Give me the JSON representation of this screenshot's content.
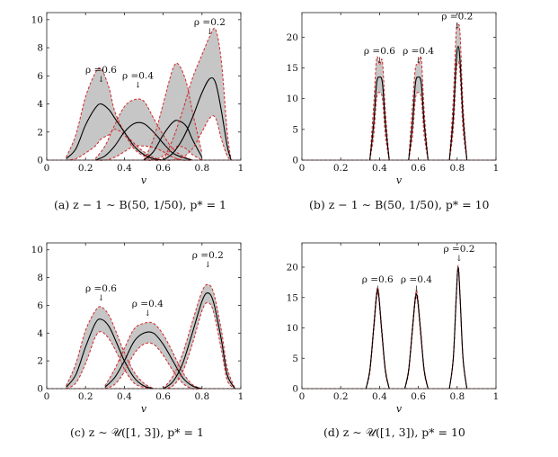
{
  "figure": {
    "panels": [
      {
        "caption": "(a) z − 1 ∼ B(50, 1/50), p* = 1"
      },
      {
        "caption": "(b) z − 1 ∼ B(50, 1/50), p* = 10"
      },
      {
        "caption": "(c) z ∼ 𝒰([1, 3]), p* = 1"
      },
      {
        "caption": "(d) z ∼ 𝒰([1, 3]), p* = 10"
      }
    ]
  },
  "colors": {
    "band_fill": "#b3b3b3",
    "band_edge": "#d62728",
    "mean_line": "#000000"
  },
  "chart_data": [
    {
      "type": "area",
      "xlabel": "v",
      "xlim": [
        0,
        1
      ],
      "ylim": [
        0,
        10.5
      ],
      "xticks": [
        "0",
        "0.2",
        "0.4",
        "0.6",
        "0.8",
        "1"
      ],
      "yticks": [
        "0",
        "2",
        "4",
        "6",
        "8",
        "10"
      ],
      "xtick_values": [
        0,
        0.2,
        0.4,
        0.6,
        0.8,
        1
      ],
      "ytick_values": [
        0,
        2,
        4,
        6,
        8,
        10
      ],
      "annotations": [
        {
          "text": "ρ =0.6",
          "x": 0.28,
          "y": 6.2
        },
        {
          "text": "ρ =0.4",
          "x": 0.47,
          "y": 5.8
        },
        {
          "text": "ρ =0.2",
          "x": 0.84,
          "y": 9.6
        }
      ],
      "series": [
        {
          "name": "ρ =0.6",
          "x": [
            0.1,
            0.15,
            0.2,
            0.25,
            0.28,
            0.32,
            0.35,
            0.4,
            0.45,
            0.5,
            0.55,
            0.6
          ],
          "mean": [
            0.1,
            0.8,
            2.5,
            3.7,
            4.0,
            3.6,
            3.0,
            2.0,
            1.0,
            0.4,
            0.1,
            0
          ],
          "upper": [
            0.2,
            1.8,
            4.5,
            6.2,
            6.5,
            5.2,
            3.5,
            2.0,
            1.2,
            0.6,
            0.2,
            0
          ],
          "lower": [
            0,
            0.1,
            0.5,
            1.0,
            1.5,
            1.8,
            2.2,
            1.8,
            0.8,
            0.3,
            0,
            0
          ]
        },
        {
          "name": "ρ =0.4",
          "x": [
            0.25,
            0.3,
            0.35,
            0.4,
            0.45,
            0.5,
            0.55,
            0.6,
            0.65,
            0.7,
            0.75
          ],
          "mean": [
            0,
            0.3,
            1.0,
            2.0,
            2.6,
            2.6,
            2.0,
            1.2,
            0.5,
            0.2,
            0
          ],
          "upper": [
            0.1,
            1.0,
            2.5,
            3.8,
            4.3,
            4.2,
            3.0,
            1.8,
            0.8,
            0.3,
            0
          ],
          "lower": [
            0,
            0,
            0.2,
            0.6,
            1.0,
            1.0,
            0.9,
            0.6,
            0.2,
            0,
            0
          ]
        },
        {
          "name": "",
          "x": [
            0.5,
            0.55,
            0.6,
            0.65,
            0.68,
            0.72,
            0.75,
            0.8
          ],
          "mean": [
            0,
            0.6,
            1.8,
            2.7,
            2.8,
            2.4,
            1.5,
            0.2
          ],
          "upper": [
            0,
            1.5,
            4.0,
            6.5,
            6.8,
            5.5,
            3.5,
            0.5
          ],
          "lower": [
            0,
            0,
            0.3,
            0.8,
            1.0,
            0.8,
            0.4,
            0
          ]
        },
        {
          "name": "ρ =0.2",
          "x": [
            0.6,
            0.65,
            0.7,
            0.75,
            0.8,
            0.84,
            0.87,
            0.9,
            0.93,
            0.95
          ],
          "mean": [
            0,
            0.5,
            1.5,
            3.0,
            4.8,
            5.8,
            5.5,
            3.5,
            1.0,
            0
          ],
          "upper": [
            0,
            1.5,
            3.5,
            5.8,
            7.5,
            8.8,
            9.3,
            7.0,
            2.0,
            0
          ],
          "lower": [
            0,
            0,
            0.2,
            0.8,
            2.0,
            3.0,
            3.0,
            1.5,
            0.3,
            0
          ]
        }
      ]
    },
    {
      "type": "area",
      "xlabel": "v",
      "xlim": [
        0,
        1
      ],
      "ylim": [
        0,
        24
      ],
      "xticks": [
        "0",
        "0.2",
        "0.4",
        "0.6",
        "0.8",
        "1"
      ],
      "yticks": [
        "0",
        "5",
        "10",
        "15",
        "20"
      ],
      "xtick_values": [
        0,
        0.2,
        0.4,
        0.6,
        0.8,
        1
      ],
      "ytick_values": [
        0,
        5,
        10,
        15,
        20
      ],
      "annotations": [
        {
          "text": "ρ =0.6",
          "x": 0.4,
          "y": 17.3
        },
        {
          "text": "ρ =0.4",
          "x": 0.6,
          "y": 17.3
        },
        {
          "text": "ρ =0.2",
          "x": 0.8,
          "y": 22.9
        }
      ],
      "series": [
        {
          "name": "ρ =0.6",
          "x": [
            0.35,
            0.37,
            0.385,
            0.4,
            0.415,
            0.43,
            0.45
          ],
          "mean": [
            0,
            6,
            12.5,
            13.5,
            12.5,
            6,
            0
          ],
          "upper": [
            0,
            9,
            16.5,
            15.5,
            16.0,
            8,
            0
          ],
          "lower": [
            0,
            4,
            10,
            11,
            10,
            4,
            0
          ]
        },
        {
          "name": "ρ =0.4",
          "x": [
            0.55,
            0.57,
            0.585,
            0.6,
            0.615,
            0.63,
            0.65
          ],
          "mean": [
            0,
            6,
            12.5,
            13.5,
            12.5,
            6,
            0
          ],
          "upper": [
            0,
            9,
            15.0,
            15.5,
            16.5,
            8,
            0
          ],
          "lower": [
            0,
            4,
            10,
            11,
            10,
            4,
            0
          ]
        },
        {
          "name": "ρ =0.2",
          "x": [
            0.76,
            0.78,
            0.795,
            0.805,
            0.815,
            0.83,
            0.85
          ],
          "mean": [
            0,
            7,
            16,
            18.5,
            16,
            7,
            0
          ],
          "upper": [
            0,
            10,
            21,
            22,
            20.5,
            9,
            0
          ],
          "lower": [
            0,
            5,
            14,
            16,
            14,
            5,
            0
          ]
        }
      ]
    },
    {
      "type": "area",
      "xlabel": "v",
      "xlim": [
        0,
        1
      ],
      "ylim": [
        0,
        10.5
      ],
      "xticks": [
        "0",
        "0.2",
        "0.4",
        "0.6",
        "0.8",
        "1"
      ],
      "yticks": [
        "0",
        "2",
        "4",
        "6",
        "8",
        "10"
      ],
      "xtick_values": [
        0,
        0.2,
        0.4,
        0.6,
        0.8,
        1
      ],
      "ytick_values": [
        0,
        2,
        4,
        6,
        8,
        10
      ],
      "annotations": [
        {
          "text": "ρ =0.6",
          "x": 0.28,
          "y": 7.0
        },
        {
          "text": "ρ =0.4",
          "x": 0.52,
          "y": 5.9
        },
        {
          "text": "ρ =0.2",
          "x": 0.83,
          "y": 9.4
        }
      ],
      "series": [
        {
          "name": "ρ =0.6",
          "x": [
            0.1,
            0.15,
            0.2,
            0.25,
            0.28,
            0.32,
            0.36,
            0.4,
            0.45,
            0.5,
            0.55
          ],
          "mean": [
            0.1,
            1.0,
            3.0,
            4.7,
            5.0,
            4.5,
            3.3,
            2.0,
            0.8,
            0.2,
            0
          ],
          "upper": [
            0.2,
            1.8,
            4.2,
            5.6,
            5.9,
            5.3,
            4.0,
            2.6,
            1.2,
            0.4,
            0
          ],
          "lower": [
            0,
            0.4,
            1.8,
            3.7,
            4.1,
            3.6,
            2.6,
            1.4,
            0.4,
            0.1,
            0
          ]
        },
        {
          "name": "ρ =0.4",
          "x": [
            0.3,
            0.35,
            0.4,
            0.45,
            0.5,
            0.55,
            0.6,
            0.65,
            0.7,
            0.75,
            0.8
          ],
          "mean": [
            0.1,
            0.8,
            2.0,
            3.4,
            4.0,
            4.0,
            3.2,
            2.0,
            0.8,
            0.2,
            0
          ],
          "upper": [
            0.2,
            1.4,
            2.9,
            4.3,
            4.7,
            4.7,
            3.9,
            2.6,
            1.2,
            0.3,
            0
          ],
          "lower": [
            0,
            0.3,
            1.2,
            2.5,
            3.2,
            3.2,
            2.4,
            1.3,
            0.4,
            0,
            0
          ]
        },
        {
          "name": "ρ =0.2",
          "x": [
            0.6,
            0.65,
            0.7,
            0.75,
            0.8,
            0.83,
            0.86,
            0.9,
            0.93,
            0.97
          ],
          "mean": [
            0,
            0.5,
            1.8,
            4.0,
            6.3,
            6.9,
            6.2,
            3.5,
            1.0,
            0
          ],
          "upper": [
            0,
            0.9,
            2.5,
            4.8,
            7.0,
            7.5,
            6.9,
            4.2,
            1.5,
            0
          ],
          "lower": [
            0,
            0.2,
            1.2,
            3.2,
            5.6,
            6.2,
            5.5,
            2.8,
            0.6,
            0
          ]
        }
      ]
    },
    {
      "type": "area",
      "xlabel": "v",
      "xlim": [
        0,
        1
      ],
      "ylim": [
        0,
        24
      ],
      "xticks": [
        "0",
        "0.2",
        "0.4",
        "0.6",
        "0.8",
        "1"
      ],
      "yticks": [
        "0",
        "5",
        "10",
        "15",
        "20"
      ],
      "xtick_values": [
        0,
        0.2,
        0.4,
        0.6,
        0.8,
        1
      ],
      "ytick_values": [
        0,
        5,
        10,
        15,
        20
      ],
      "annotations": [
        {
          "text": "ρ =0.6",
          "x": 0.39,
          "y": 17.5
        },
        {
          "text": "ρ =0.4",
          "x": 0.59,
          "y": 17.5
        },
        {
          "text": "ρ =0.2",
          "x": 0.81,
          "y": 22.5
        }
      ],
      "series": [
        {
          "name": "ρ =0.6",
          "x": [
            0.33,
            0.35,
            0.37,
            0.385,
            0.395,
            0.41,
            0.43,
            0.45
          ],
          "mean": [
            0,
            3,
            10,
            15.5,
            15.6,
            10,
            3,
            0
          ],
          "upper": [
            0,
            3.3,
            10.5,
            16.0,
            16.0,
            10.5,
            3.3,
            0
          ],
          "lower": [
            0,
            2.7,
            9.5,
            15.0,
            15.2,
            9.5,
            2.7,
            0
          ]
        },
        {
          "name": "ρ =0.4",
          "x": [
            0.53,
            0.55,
            0.57,
            0.585,
            0.595,
            0.61,
            0.63,
            0.65
          ],
          "mean": [
            0,
            3,
            10,
            15.0,
            15.0,
            10,
            3,
            0
          ],
          "upper": [
            0,
            3.3,
            10.5,
            15.5,
            15.5,
            10.5,
            3.3,
            0
          ],
          "lower": [
            0,
            2.7,
            9.5,
            14.6,
            14.6,
            9.5,
            2.7,
            0
          ]
        },
        {
          "name": "ρ =0.2",
          "x": [
            0.76,
            0.78,
            0.795,
            0.805,
            0.815,
            0.83,
            0.85
          ],
          "mean": [
            0,
            5,
            15,
            20,
            15,
            5,
            0
          ],
          "upper": [
            0,
            5.3,
            15.5,
            20.3,
            15.5,
            5.3,
            0
          ],
          "lower": [
            0,
            4.7,
            14.5,
            19.7,
            14.5,
            4.7,
            0
          ]
        }
      ]
    }
  ]
}
